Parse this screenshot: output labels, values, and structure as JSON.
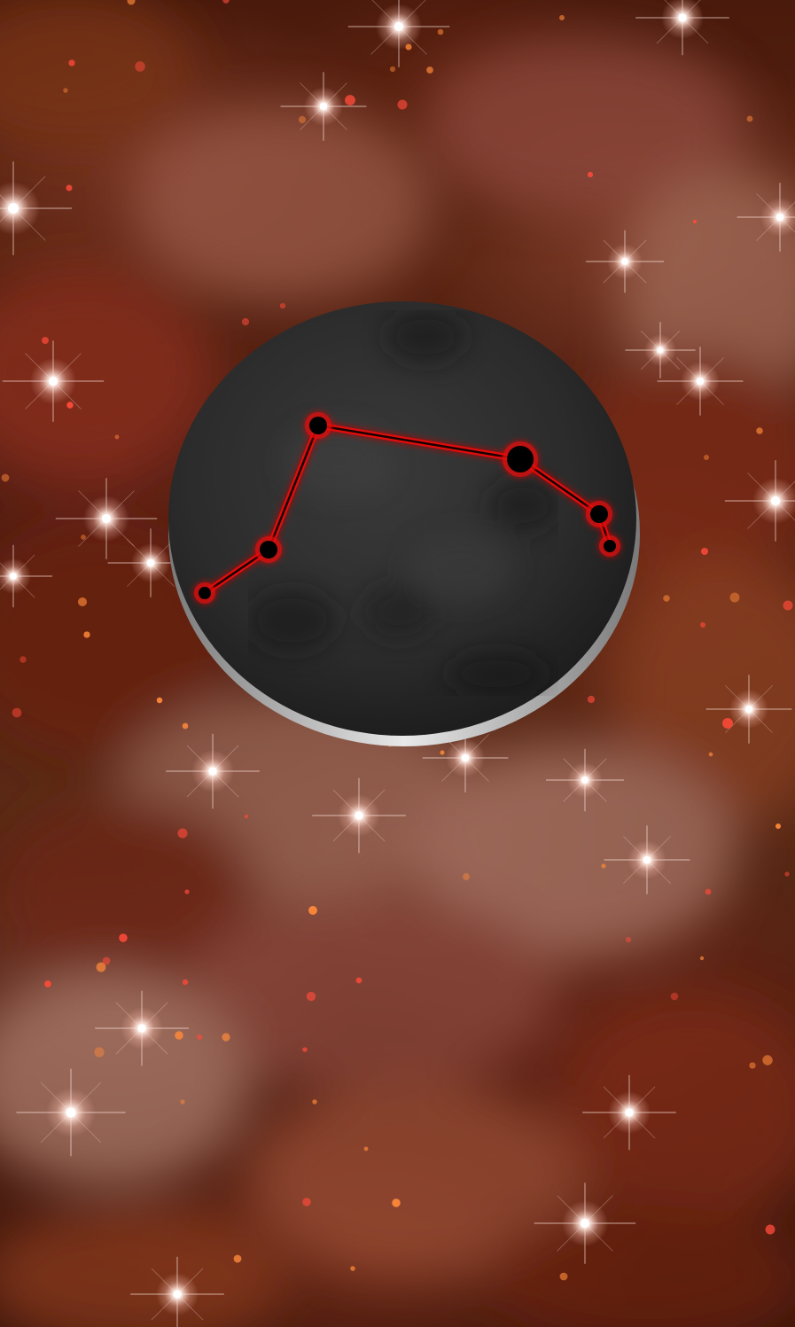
{
  "scene": {
    "colors": {
      "background": "#4a1a0c",
      "nebula_warm": "#8a3a1e",
      "nebula_pink": "#b07a6a",
      "disc_face": "#2e2e2e",
      "disc_edge": "#d8d8d8",
      "constellation_line": "#e01010",
      "constellation_star": "#000000"
    },
    "constellation": {
      "star_count": 6,
      "link_count": 5
    }
  }
}
